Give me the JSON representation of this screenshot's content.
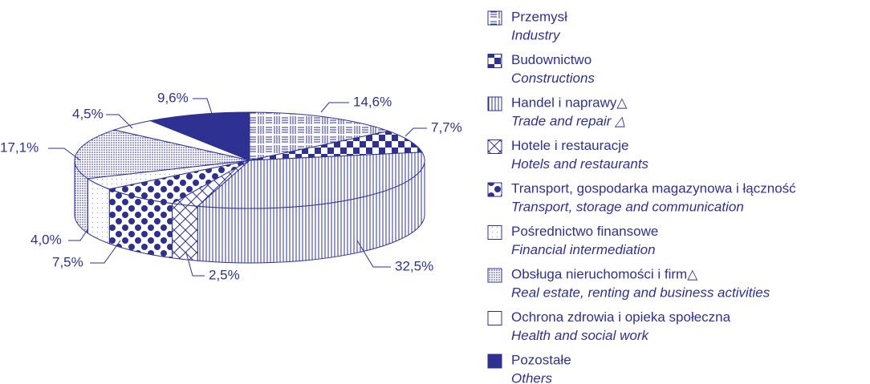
{
  "chart_data": {
    "type": "pie",
    "categories": [
      "Przemysł",
      "Budownictwo",
      "Handel i naprawy△",
      "Hotele i restauracje",
      "Transport, gospodarka magazynowa i łączność",
      "Pośrednictwo finansowe",
      "Obsługa nieruchomości i firm△",
      "Ochrona zdrowia i opieka społeczna",
      "Pozostałe"
    ],
    "categories_en": [
      "Industry",
      "Constructions",
      "Trade and repair △",
      "Hotels and restaurants",
      "Transport, storage and communication",
      "Financial intermediation",
      "Real estate, renting and business activities",
      "Health and social work",
      "Others"
    ],
    "values": [
      14.6,
      7.7,
      32.5,
      2.5,
      7.5,
      4.0,
      17.1,
      4.5,
      9.6
    ],
    "value_labels": [
      "14,6%",
      "7,7%",
      "32,5%",
      "2,5%",
      "7,5%",
      "4,0%",
      "17,1%",
      "4,5%",
      "9,6%"
    ],
    "patterns": [
      "mixed",
      "checker",
      "vlines",
      "cross",
      "dots",
      "sparse",
      "stipple",
      "white",
      "solid"
    ],
    "color": "#2e3192"
  }
}
